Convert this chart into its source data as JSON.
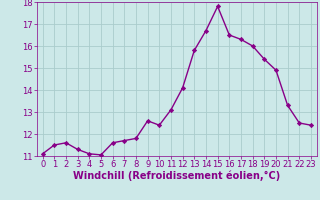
{
  "x": [
    0,
    1,
    2,
    3,
    4,
    5,
    6,
    7,
    8,
    9,
    10,
    11,
    12,
    13,
    14,
    15,
    16,
    17,
    18,
    19,
    20,
    21,
    22,
    23
  ],
  "y": [
    11.1,
    11.5,
    11.6,
    11.3,
    11.1,
    11.05,
    11.6,
    11.7,
    11.8,
    12.6,
    12.4,
    13.1,
    14.1,
    15.8,
    16.7,
    17.8,
    16.5,
    16.3,
    16.0,
    15.4,
    14.9,
    13.3,
    12.5,
    12.4
  ],
  "line_color": "#880088",
  "marker": "D",
  "marker_size": 2.2,
  "bg_color": "#cce8e8",
  "grid_color": "#b0d0d0",
  "xlabel": "Windchill (Refroidissement éolien,°C)",
  "xlabel_color": "#880088",
  "tick_color": "#880088",
  "ylim": [
    11,
    18
  ],
  "xlim": [
    -0.5,
    23.5
  ],
  "yticks": [
    11,
    12,
    13,
    14,
    15,
    16,
    17,
    18
  ],
  "xticks": [
    0,
    1,
    2,
    3,
    4,
    5,
    6,
    7,
    8,
    9,
    10,
    11,
    12,
    13,
    14,
    15,
    16,
    17,
    18,
    19,
    20,
    21,
    22,
    23
  ],
  "tick_fontsize": 6.0,
  "xlabel_fontsize": 7.0,
  "linewidth": 1.0
}
